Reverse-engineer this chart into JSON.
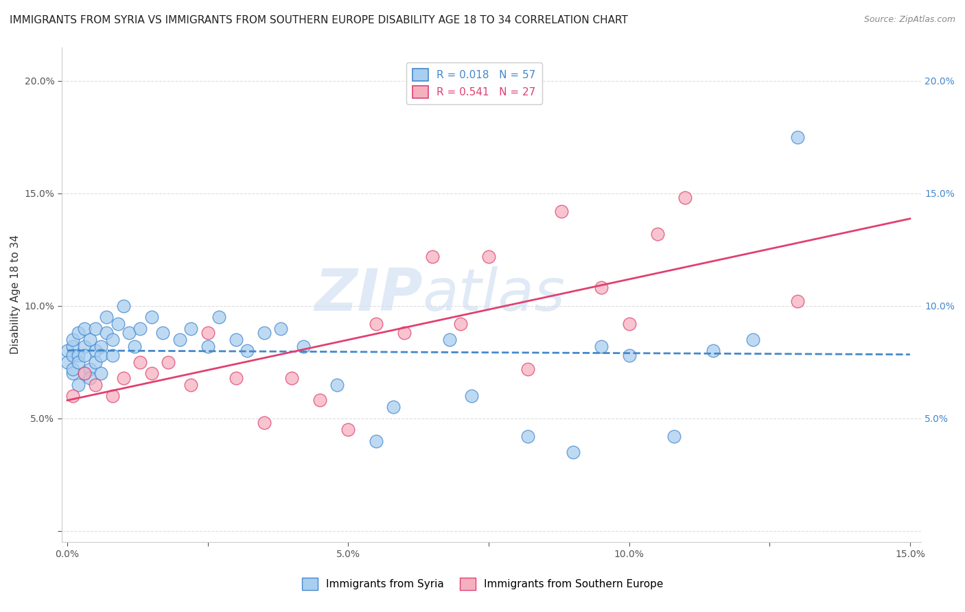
{
  "title": "IMMIGRANTS FROM SYRIA VS IMMIGRANTS FROM SOUTHERN EUROPE DISABILITY AGE 18 TO 34 CORRELATION CHART",
  "source_text": "Source: ZipAtlas.com",
  "ylabel": "Disability Age 18 to 34",
  "xlabel_syria": "Immigrants from Syria",
  "xlabel_s_europe": "Immigrants from Southern Europe",
  "xlim": [
    -0.001,
    0.152
  ],
  "ylim": [
    -0.005,
    0.215
  ],
  "color_syria": "#a8cef0",
  "color_s_europe": "#f5b0c0",
  "color_syria_line": "#4488cc",
  "color_s_europe_line": "#e04070",
  "syria_x": [
    0.0,
    0.0,
    0.001,
    0.001,
    0.001,
    0.001,
    0.001,
    0.002,
    0.002,
    0.002,
    0.002,
    0.003,
    0.003,
    0.003,
    0.003,
    0.004,
    0.004,
    0.004,
    0.005,
    0.005,
    0.005,
    0.006,
    0.006,
    0.006,
    0.007,
    0.007,
    0.008,
    0.008,
    0.009,
    0.01,
    0.011,
    0.012,
    0.013,
    0.015,
    0.017,
    0.02,
    0.022,
    0.025,
    0.027,
    0.03,
    0.032,
    0.035,
    0.038,
    0.042,
    0.048,
    0.055,
    0.058,
    0.068,
    0.072,
    0.082,
    0.09,
    0.095,
    0.1,
    0.108,
    0.115,
    0.122,
    0.13
  ],
  "syria_y": [
    0.08,
    0.075,
    0.082,
    0.078,
    0.07,
    0.085,
    0.072,
    0.088,
    0.065,
    0.078,
    0.075,
    0.09,
    0.082,
    0.07,
    0.078,
    0.085,
    0.072,
    0.068,
    0.08,
    0.075,
    0.09,
    0.082,
    0.078,
    0.07,
    0.095,
    0.088,
    0.085,
    0.078,
    0.092,
    0.1,
    0.088,
    0.082,
    0.09,
    0.095,
    0.088,
    0.085,
    0.09,
    0.082,
    0.095,
    0.085,
    0.08,
    0.088,
    0.09,
    0.082,
    0.065,
    0.04,
    0.055,
    0.085,
    0.06,
    0.042,
    0.035,
    0.082,
    0.078,
    0.042,
    0.08,
    0.085,
    0.175
  ],
  "s_europe_x": [
    0.001,
    0.003,
    0.005,
    0.008,
    0.01,
    0.013,
    0.015,
    0.018,
    0.022,
    0.025,
    0.03,
    0.035,
    0.04,
    0.045,
    0.05,
    0.055,
    0.06,
    0.065,
    0.07,
    0.075,
    0.082,
    0.088,
    0.095,
    0.1,
    0.105,
    0.11,
    0.13
  ],
  "s_europe_y": [
    0.06,
    0.07,
    0.065,
    0.06,
    0.068,
    0.075,
    0.07,
    0.075,
    0.065,
    0.088,
    0.068,
    0.048,
    0.068,
    0.058,
    0.045,
    0.092,
    0.088,
    0.122,
    0.092,
    0.122,
    0.072,
    0.142,
    0.108,
    0.092,
    0.132,
    0.148,
    0.102
  ],
  "background_color": "#ffffff",
  "grid_color": "#dddddd",
  "watermark_zip": "ZIP",
  "watermark_atlas": "atlas",
  "title_fontsize": 11,
  "axis_label_fontsize": 11,
  "tick_fontsize": 10,
  "legend_fontsize": 11,
  "source_fontsize": 9
}
